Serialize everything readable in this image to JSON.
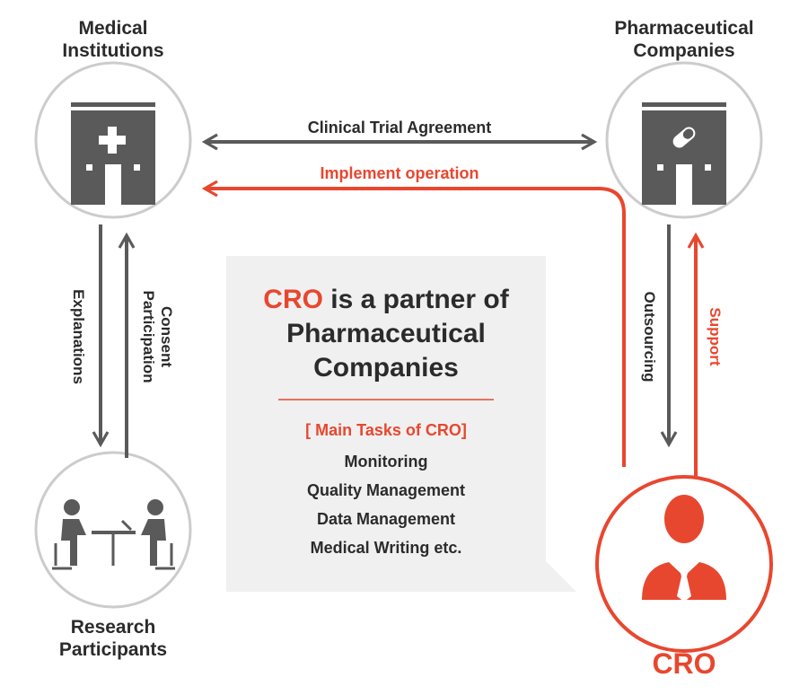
{
  "colors": {
    "accent": "#e8472f",
    "icon_gray": "#5a5a5a",
    "circle_gray": "#cccccc",
    "box_bg": "#f0f0f0"
  },
  "nodes": {
    "medical": {
      "line1": "Medical",
      "line2": "Institutions",
      "icon": "hospital-icon"
    },
    "pharma": {
      "line1": "Pharmaceutical",
      "line2": "Companies",
      "icon": "pharma-building-pill-icon"
    },
    "research": {
      "line1": "Research",
      "line2": "Participants",
      "icon": "meeting-people-icon"
    },
    "cro": {
      "label": "CRO",
      "icon": "person-tie-icon"
    }
  },
  "arrows": {
    "clinical_trial_agreement": "Clinical Trial Agreement",
    "implement_operation": "Implement operation",
    "explanations": "Explanations",
    "consent_line1": "Consent",
    "consent_line2": "Participation",
    "outsourcing": "Outsourcing",
    "support": "Support"
  },
  "callout": {
    "title_highlight": "CRO",
    "title_rest1": " is a partner of",
    "title_line2": "Pharmaceutical",
    "title_line3": "Companies",
    "tasks_heading": "[ Main Tasks of CRO]",
    "tasks": [
      "Monitoring",
      "Quality Management",
      "Data Management",
      "Medical Writing etc."
    ]
  }
}
